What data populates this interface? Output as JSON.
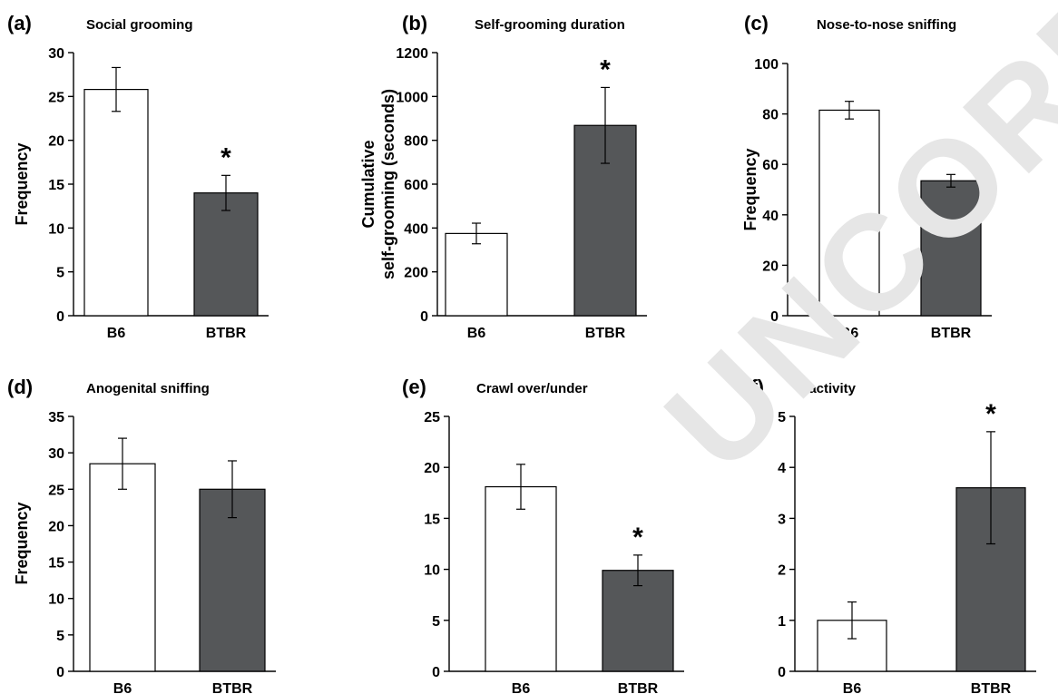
{
  "chart_data": [
    {
      "type": "bar",
      "panel_label": "(a)",
      "title": "Social grooming",
      "ylabel": "Frequency",
      "categories": [
        "B6",
        "BTBR"
      ],
      "values": [
        25.8,
        14.0
      ],
      "errors": [
        2.5,
        2.0
      ],
      "significant": [
        false,
        true
      ],
      "ylim": [
        0,
        30
      ],
      "yticks": [
        0,
        5,
        10,
        15,
        20,
        25,
        30
      ],
      "bar_colors": [
        "#ffffff",
        "#555759"
      ]
    },
    {
      "type": "bar",
      "panel_label": "(b)",
      "title": "Self-grooming duration",
      "ylabel": "Cumulative self-grooming (seconds)",
      "categories": [
        "B6",
        "BTBR"
      ],
      "values": [
        375,
        868
      ],
      "errors": [
        47,
        173
      ],
      "significant": [
        false,
        true
      ],
      "ylim": [
        0,
        1200
      ],
      "yticks": [
        0,
        200,
        400,
        600,
        800,
        1000,
        1200
      ],
      "bar_colors": [
        "#ffffff",
        "#555759"
      ]
    },
    {
      "type": "bar",
      "panel_label": "(c)",
      "title": "Nose-to-nose sniffing",
      "ylabel": "Frequency",
      "categories": [
        "B6",
        "BTBR"
      ],
      "values": [
        81.5,
        53.5
      ],
      "errors": [
        3.5,
        2.5
      ],
      "significant": [
        false,
        true
      ],
      "ylim": [
        0,
        100
      ],
      "yticks": [
        0,
        20,
        40,
        60,
        80,
        100
      ],
      "bar_colors": [
        "#ffffff",
        "#555759"
      ]
    },
    {
      "type": "bar",
      "panel_label": "(d)",
      "title": "Anogenital sniffing",
      "ylabel": "Frequency",
      "categories": [
        "B6",
        "BTBR"
      ],
      "values": [
        28.5,
        25.0
      ],
      "errors": [
        3.5,
        3.9
      ],
      "significant": [
        false,
        false
      ],
      "ylim": [
        0,
        35
      ],
      "yticks": [
        0,
        5,
        10,
        15,
        20,
        25,
        30,
        35
      ],
      "bar_colors": [
        "#ffffff",
        "#555759"
      ]
    },
    {
      "type": "bar",
      "panel_label": "(e)",
      "title": "Crawl over/under",
      "ylabel": "",
      "categories": [
        "B6",
        "BTBR"
      ],
      "values": [
        18.1,
        9.9
      ],
      "errors": [
        2.2,
        1.5
      ],
      "significant": [
        false,
        true
      ],
      "ylim": [
        0,
        25
      ],
      "yticks": [
        0,
        5,
        10,
        15,
        20,
        25
      ],
      "bar_colors": [
        "#ffffff",
        "#555759"
      ]
    },
    {
      "type": "bar",
      "panel_label": "(f)",
      "title": "Inactivity",
      "ylabel": "",
      "categories": [
        "B6",
        "BTBR"
      ],
      "values": [
        1.0,
        3.6
      ],
      "errors": [
        0.36,
        1.1
      ],
      "significant": [
        false,
        true
      ],
      "ylim": [
        0,
        5
      ],
      "yticks": [
        0,
        1,
        2,
        3,
        4,
        5
      ],
      "bar_colors": [
        "#ffffff",
        "#555759"
      ]
    }
  ],
  "significance_marker": "*",
  "watermark": "UNCORRECTED PROOF"
}
